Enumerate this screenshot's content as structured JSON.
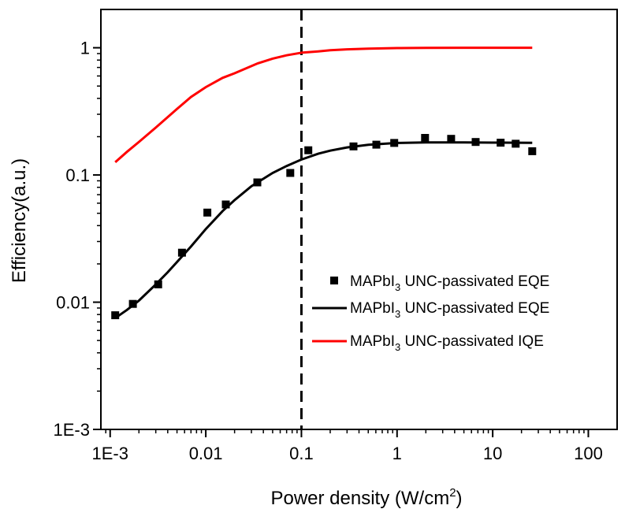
{
  "chart_data": {
    "type": "scatter",
    "xscale": "log",
    "yscale": "log",
    "xlim": [
      0.0008,
      200
    ],
    "ylim": [
      0.001,
      2
    ],
    "xlabel": {
      "prefix": "Power density (W/cm",
      "sup": "2",
      "suffix": ")"
    },
    "ylabel": "Efficiency(a.u.)",
    "x_ticks": [
      {
        "value": 0.001,
        "label": "1E-3"
      },
      {
        "value": 0.01,
        "label": "0.01"
      },
      {
        "value": 0.1,
        "label": "0.1"
      },
      {
        "value": 1,
        "label": "1"
      },
      {
        "value": 10,
        "label": "10"
      },
      {
        "value": 100,
        "label": "100"
      }
    ],
    "y_ticks": [
      {
        "value": 0.001,
        "label": "1E-3"
      },
      {
        "value": 0.01,
        "label": "0.01"
      },
      {
        "value": 0.1,
        "label": "0.1"
      },
      {
        "value": 1,
        "label": "1"
      }
    ],
    "vline": {
      "x": 0.1,
      "style": "dashed",
      "color": "#000000"
    },
    "legend_position": "right-middle",
    "series": [
      {
        "kind": "markers",
        "color": "#000000",
        "legend": {
          "pre": "MAPbI",
          "sub": "3",
          "post": " UNC-passivated EQE"
        },
        "x": [
          0.00113,
          0.00173,
          0.00318,
          0.00564,
          0.01039,
          0.0162,
          0.0346,
          0.0764,
          0.118,
          0.35,
          0.607,
          0.935,
          1.96,
          3.68,
          6.63,
          12.1,
          17.4,
          25.9
        ],
        "y": [
          0.0079,
          0.0097,
          0.0138,
          0.0245,
          0.0506,
          0.0586,
          0.0874,
          0.1038,
          0.1564,
          0.1678,
          0.1731,
          0.1786,
          0.1956,
          0.1923,
          0.1818,
          0.1793,
          0.1761,
          0.1537
        ]
      },
      {
        "kind": "line",
        "color": "#000000",
        "legend": {
          "pre": "MAPbI",
          "sub": "3",
          "post": " UNC-passivated EQE"
        },
        "x": [
          0.00113,
          0.0015,
          0.002,
          0.003,
          0.004,
          0.005,
          0.007,
          0.01,
          0.015,
          0.02,
          0.03,
          0.05,
          0.07,
          0.1,
          0.15,
          0.2,
          0.3,
          0.5,
          1,
          2,
          5,
          10,
          25.9
        ],
        "y": [
          0.0075,
          0.0087,
          0.0103,
          0.0138,
          0.0172,
          0.0207,
          0.0274,
          0.0376,
          0.0521,
          0.0634,
          0.0815,
          0.1037,
          0.1176,
          0.1321,
          0.147,
          0.1553,
          0.1647,
          0.1729,
          0.1785,
          0.1801,
          0.1801,
          0.1797,
          0.1791
        ]
      },
      {
        "kind": "line",
        "color": "#ff0000",
        "legend": {
          "pre": "MAPbI",
          "sub": "3",
          "post": " UNC-passivated IQE"
        },
        "x": [
          0.00113,
          0.0015,
          0.002,
          0.003,
          0.005,
          0.007,
          0.01,
          0.015,
          0.02,
          0.035,
          0.05,
          0.07,
          0.1,
          0.15,
          0.2,
          0.3,
          0.5,
          1,
          2,
          5,
          10,
          25.9
        ],
        "y": [
          0.126,
          0.152,
          0.182,
          0.236,
          0.33,
          0.41,
          0.49,
          0.58,
          0.63,
          0.754,
          0.822,
          0.872,
          0.914,
          0.937,
          0.955,
          0.972,
          0.985,
          0.994,
          0.998,
          1.0,
          1.0,
          1.0
        ]
      }
    ]
  }
}
